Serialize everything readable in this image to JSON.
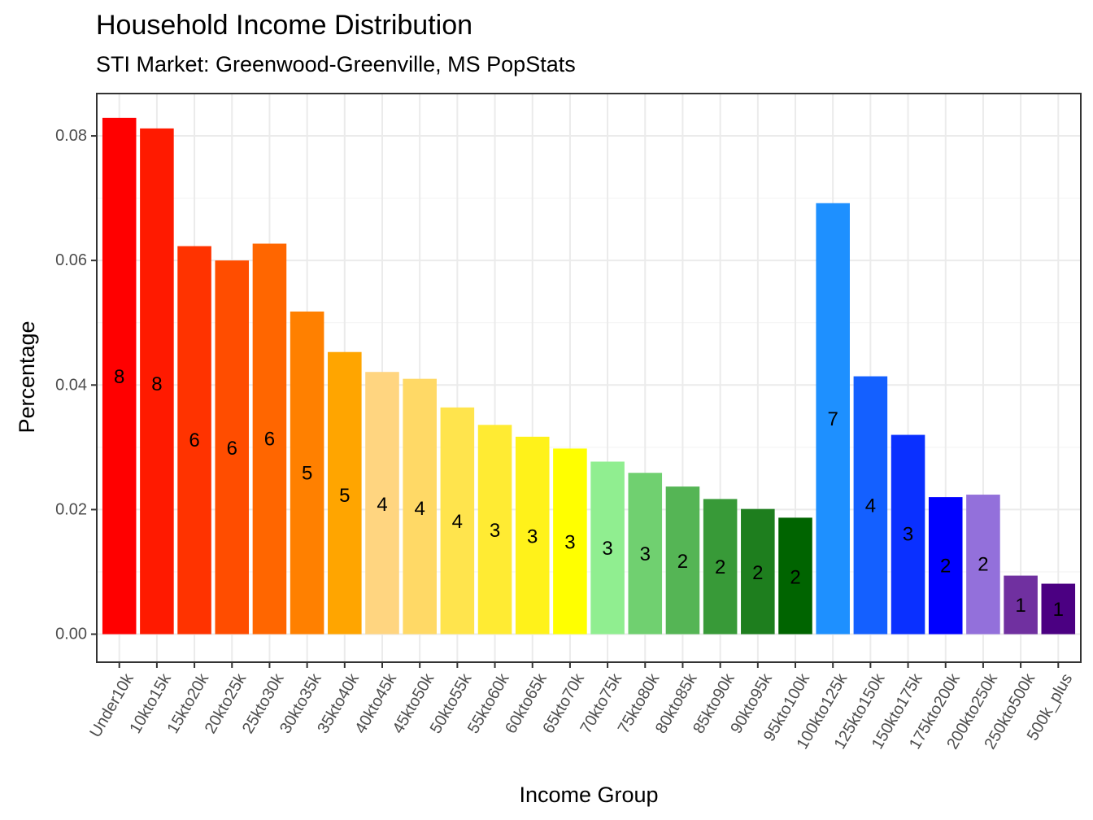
{
  "chart_data": {
    "type": "bar",
    "title": "Household Income Distribution",
    "subtitle": "STI Market: Greenwood-Greenville, MS PopStats",
    "xlabel": "Income Group",
    "ylabel": "Percentage",
    "ylim": [
      -0.0045,
      0.0868
    ],
    "yticks": [
      0.0,
      0.02,
      0.04,
      0.06,
      0.08
    ],
    "ytick_labels": [
      "0.00",
      "0.02",
      "0.04",
      "0.06",
      "0.08"
    ],
    "grid": true,
    "legend": "none",
    "categories": [
      "Under10k",
      "10kto15k",
      "15kto20k",
      "20kto25k",
      "25kto30k",
      "30kto35k",
      "35kto40k",
      "40kto45k",
      "45kto50k",
      "50kto55k",
      "55kto60k",
      "60kto65k",
      "65kto70k",
      "70kto75k",
      "75kto80k",
      "80kto85k",
      "85kto90k",
      "90kto95k",
      "95kto100k",
      "100kto125k",
      "125kto150k",
      "150kto175k",
      "175kto200k",
      "200kto250k",
      "250kto500k",
      "500k_plus"
    ],
    "values": [
      0.0829,
      0.0812,
      0.0623,
      0.06,
      0.0627,
      0.0518,
      0.0453,
      0.0421,
      0.041,
      0.0364,
      0.0336,
      0.0317,
      0.0298,
      0.0277,
      0.0259,
      0.0237,
      0.0217,
      0.0201,
      0.0187,
      0.0692,
      0.0414,
      0.032,
      0.022,
      0.0224,
      0.0094,
      0.0081
    ],
    "data_labels": [
      "8",
      "8",
      "6",
      "6",
      "6",
      "5",
      "5",
      "4",
      "4",
      "4",
      "3",
      "3",
      "3",
      "3",
      "3",
      "2",
      "2",
      "2",
      "2",
      "7",
      "4",
      "3",
      "2",
      "2",
      "1",
      "1"
    ],
    "label_positions": [
      0.0413,
      0.0401,
      0.0311,
      0.0298,
      0.0313,
      0.0258,
      0.0222,
      0.0208,
      0.0201,
      0.018,
      0.0166,
      0.0156,
      0.0147,
      0.0137,
      0.0128,
      0.0116,
      0.0107,
      0.0098,
      0.0091,
      0.0345,
      0.0206,
      0.016,
      0.0109,
      0.0112,
      0.0046,
      0.0039
    ],
    "colors": [
      "#FF0000",
      "#FF1A00",
      "#FF3300",
      "#FF4D00",
      "#FF6600",
      "#FF8000",
      "#FFA500",
      "#FFD580",
      "#FFD966",
      "#FFE44D",
      "#FFEB33",
      "#FFF21A",
      "#FFFF00",
      "#90EE90",
      "#70D070",
      "#55B555",
      "#389A38",
      "#1E7E1E",
      "#006400",
      "#1E90FF",
      "#1460FF",
      "#0A30FF",
      "#0000FF",
      "#9370DB",
      "#7030A0",
      "#4B0082"
    ]
  }
}
